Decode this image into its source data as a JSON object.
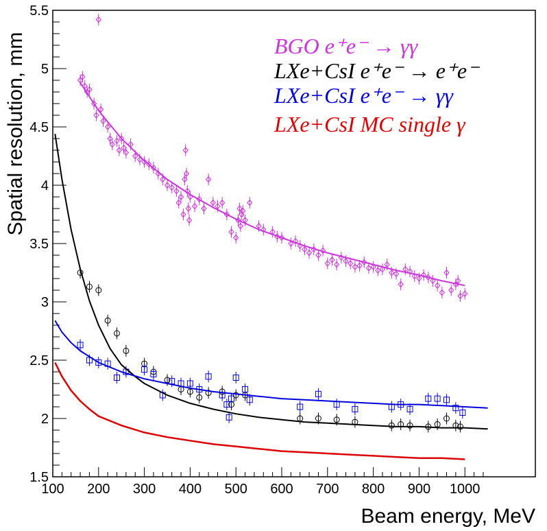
{
  "chart_data": {
    "type": "scatter",
    "xlabel": "Beam energy, MeV",
    "ylabel": "Spatial resolution, mm",
    "xlim": [
      100,
      1050
    ],
    "ylim": [
      1.5,
      5.5
    ],
    "x_ticks": [
      "100",
      "200",
      "300",
      "400",
      "500",
      "600",
      "700",
      "800",
      "900",
      "1000"
    ],
    "y_ticks": [
      "1.5",
      "2",
      "2.5",
      "3",
      "3.5",
      "4",
      "4.5",
      "5",
      "5.5"
    ],
    "grid": false,
    "legend_position": "top-right",
    "series": [
      {
        "name": "BGO e⁺e⁻ → γγ",
        "color": "#cc33dd",
        "fit": [
          [
            160,
            4.88
          ],
          [
            200,
            4.64
          ],
          [
            250,
            4.4
          ],
          [
            300,
            4.21
          ],
          [
            350,
            4.05
          ],
          [
            400,
            3.92
          ],
          [
            450,
            3.81
          ],
          [
            500,
            3.71
          ],
          [
            550,
            3.62
          ],
          [
            600,
            3.55
          ],
          [
            650,
            3.48
          ],
          [
            700,
            3.42
          ],
          [
            750,
            3.37
          ],
          [
            800,
            3.32
          ],
          [
            850,
            3.27
          ],
          [
            900,
            3.23
          ],
          [
            950,
            3.18
          ],
          [
            1000,
            3.14
          ]
        ],
        "points": [
          [
            160,
            4.9
          ],
          [
            165,
            4.93
          ],
          [
            170,
            4.85
          ],
          [
            175,
            4.8
          ],
          [
            180,
            4.82
          ],
          [
            190,
            4.7
          ],
          [
            195,
            4.6
          ],
          [
            200,
            5.42
          ],
          [
            205,
            4.65
          ],
          [
            210,
            4.55
          ],
          [
            220,
            4.5
          ],
          [
            225,
            4.4
          ],
          [
            230,
            4.35
          ],
          [
            240,
            4.38
          ],
          [
            245,
            4.3
          ],
          [
            250,
            4.4
          ],
          [
            255,
            4.32
          ],
          [
            260,
            4.28
          ],
          [
            270,
            4.35
          ],
          [
            280,
            4.25
          ],
          [
            290,
            4.22
          ],
          [
            300,
            4.2
          ],
          [
            310,
            4.18
          ],
          [
            320,
            4.15
          ],
          [
            330,
            4.1
          ],
          [
            340,
            4.05
          ],
          [
            350,
            4.0
          ],
          [
            360,
            3.98
          ],
          [
            370,
            3.95
          ],
          [
            375,
            3.85
          ],
          [
            380,
            3.9
          ],
          [
            385,
            3.75
          ],
          [
            388,
            4.05
          ],
          [
            390,
            4.3
          ],
          [
            392,
            4.1
          ],
          [
            394,
            3.95
          ],
          [
            396,
            3.8
          ],
          [
            398,
            3.7
          ],
          [
            400,
            3.9
          ],
          [
            410,
            3.82
          ],
          [
            420,
            3.88
          ],
          [
            430,
            3.8
          ],
          [
            440,
            4.05
          ],
          [
            450,
            3.85
          ],
          [
            460,
            3.82
          ],
          [
            470,
            3.85
          ],
          [
            480,
            3.75
          ],
          [
            490,
            3.6
          ],
          [
            500,
            3.55
          ],
          [
            505,
            3.7
          ],
          [
            508,
            3.8
          ],
          [
            510,
            3.65
          ],
          [
            512,
            3.75
          ],
          [
            515,
            3.78
          ],
          [
            520,
            3.7
          ],
          [
            530,
            3.85
          ],
          [
            550,
            3.65
          ],
          [
            560,
            3.62
          ],
          [
            580,
            3.6
          ],
          [
            590,
            3.56
          ],
          [
            600,
            3.55
          ],
          [
            620,
            3.5
          ],
          [
            630,
            3.52
          ],
          [
            640,
            3.48
          ],
          [
            650,
            3.45
          ],
          [
            660,
            3.42
          ],
          [
            670,
            3.45
          ],
          [
            680,
            3.4
          ],
          [
            690,
            3.44
          ],
          [
            700,
            3.33
          ],
          [
            710,
            3.36
          ],
          [
            720,
            3.32
          ],
          [
            730,
            3.38
          ],
          [
            740,
            3.35
          ],
          [
            750,
            3.33
          ],
          [
            760,
            3.3
          ],
          [
            770,
            3.31
          ],
          [
            780,
            3.34
          ],
          [
            790,
            3.29
          ],
          [
            800,
            3.3
          ],
          [
            810,
            3.27
          ],
          [
            820,
            3.28
          ],
          [
            830,
            3.32
          ],
          [
            840,
            3.25
          ],
          [
            850,
            3.24
          ],
          [
            860,
            3.15
          ],
          [
            870,
            3.28
          ],
          [
            880,
            3.26
          ],
          [
            890,
            3.22
          ],
          [
            900,
            3.2
          ],
          [
            910,
            3.23
          ],
          [
            920,
            3.21
          ],
          [
            930,
            3.18
          ],
          [
            940,
            3.14
          ],
          [
            950,
            3.08
          ],
          [
            960,
            3.25
          ],
          [
            970,
            3.1
          ],
          [
            980,
            3.15
          ],
          [
            985,
            3.18
          ],
          [
            990,
            3.05
          ],
          [
            1000,
            3.07
          ]
        ]
      },
      {
        "name": "LXe+CsI e⁺e⁻ → e⁺e⁻",
        "color": "#000000",
        "fit": [
          [
            105,
            4.44
          ],
          [
            120,
            4.05
          ],
          [
            140,
            3.62
          ],
          [
            160,
            3.28
          ],
          [
            180,
            3.01
          ],
          [
            200,
            2.8
          ],
          [
            225,
            2.6
          ],
          [
            250,
            2.46
          ],
          [
            280,
            2.36
          ],
          [
            300,
            2.3
          ],
          [
            350,
            2.2
          ],
          [
            400,
            2.13
          ],
          [
            450,
            2.08
          ],
          [
            500,
            2.04
          ],
          [
            550,
            2.01
          ],
          [
            600,
            1.99
          ],
          [
            650,
            1.97
          ],
          [
            700,
            1.96
          ],
          [
            750,
            1.95
          ],
          [
            800,
            1.94
          ],
          [
            850,
            1.93
          ],
          [
            900,
            1.93
          ],
          [
            950,
            1.92
          ],
          [
            1000,
            1.92
          ],
          [
            1050,
            1.91
          ]
        ],
        "points": [
          [
            160,
            3.25
          ],
          [
            180,
            3.13
          ],
          [
            200,
            3.1
          ],
          [
            220,
            2.84
          ],
          [
            240,
            2.73
          ],
          [
            260,
            2.58
          ],
          [
            300,
            2.47
          ],
          [
            320,
            2.4
          ],
          [
            350,
            2.33
          ],
          [
            380,
            2.25
          ],
          [
            400,
            2.23
          ],
          [
            420,
            2.18
          ],
          [
            440,
            2.22
          ],
          [
            470,
            2.23
          ],
          [
            490,
            2.12
          ],
          [
            500,
            2.2
          ],
          [
            520,
            2.2
          ],
          [
            640,
            2.0
          ],
          [
            680,
            2.0
          ],
          [
            720,
            1.99
          ],
          [
            760,
            1.97
          ],
          [
            840,
            1.94
          ],
          [
            860,
            1.95
          ],
          [
            880,
            1.94
          ],
          [
            920,
            1.93
          ],
          [
            940,
            1.95
          ],
          [
            960,
            2.0
          ],
          [
            980,
            1.94
          ],
          [
            990,
            1.93
          ]
        ]
      },
      {
        "name": "LXe+CsI e⁺e⁻ → γγ",
        "color": "#0000dd",
        "fit": [
          [
            105,
            2.84
          ],
          [
            120,
            2.74
          ],
          [
            140,
            2.65
          ],
          [
            160,
            2.58
          ],
          [
            200,
            2.48
          ],
          [
            250,
            2.4
          ],
          [
            300,
            2.34
          ],
          [
            350,
            2.3
          ],
          [
            400,
            2.26
          ],
          [
            450,
            2.23
          ],
          [
            500,
            2.21
          ],
          [
            550,
            2.19
          ],
          [
            600,
            2.17
          ],
          [
            650,
            2.16
          ],
          [
            700,
            2.15
          ],
          [
            750,
            2.14
          ],
          [
            800,
            2.13
          ],
          [
            850,
            2.12
          ],
          [
            900,
            2.12
          ],
          [
            950,
            2.11
          ],
          [
            1000,
            2.1
          ],
          [
            1050,
            2.09
          ]
        ],
        "points": [
          [
            160,
            2.63
          ],
          [
            180,
            2.5
          ],
          [
            200,
            2.48
          ],
          [
            220,
            2.47
          ],
          [
            240,
            2.35
          ],
          [
            260,
            2.4
          ],
          [
            300,
            2.42
          ],
          [
            320,
            2.38
          ],
          [
            340,
            2.2
          ],
          [
            360,
            2.32
          ],
          [
            380,
            2.3
          ],
          [
            400,
            2.3
          ],
          [
            420,
            2.25
          ],
          [
            440,
            2.36
          ],
          [
            470,
            2.2
          ],
          [
            480,
            2.12
          ],
          [
            485,
            2.01
          ],
          [
            490,
            2.17
          ],
          [
            500,
            2.35
          ],
          [
            520,
            2.25
          ],
          [
            530,
            2.16
          ],
          [
            640,
            2.1
          ],
          [
            680,
            2.21
          ],
          [
            720,
            2.12
          ],
          [
            760,
            2.08
          ],
          [
            840,
            2.1
          ],
          [
            860,
            2.12
          ],
          [
            880,
            2.08
          ],
          [
            920,
            2.17
          ],
          [
            940,
            2.17
          ],
          [
            960,
            2.16
          ],
          [
            980,
            2.09
          ],
          [
            995,
            2.05
          ]
        ]
      },
      {
        "name": "LXe+CsI MC single γ",
        "color": "#dd0000",
        "fit": [
          [
            105,
            2.48
          ],
          [
            120,
            2.36
          ],
          [
            140,
            2.24
          ],
          [
            160,
            2.15
          ],
          [
            180,
            2.08
          ],
          [
            200,
            2.02
          ],
          [
            250,
            1.94
          ],
          [
            300,
            1.88
          ],
          [
            350,
            1.84
          ],
          [
            400,
            1.81
          ],
          [
            450,
            1.78
          ],
          [
            500,
            1.76
          ],
          [
            550,
            1.74
          ],
          [
            600,
            1.72
          ],
          [
            650,
            1.71
          ],
          [
            700,
            1.7
          ],
          [
            750,
            1.69
          ],
          [
            800,
            1.68
          ],
          [
            850,
            1.67
          ],
          [
            900,
            1.66
          ],
          [
            950,
            1.66
          ],
          [
            1000,
            1.65
          ]
        ],
        "points": []
      }
    ]
  }
}
